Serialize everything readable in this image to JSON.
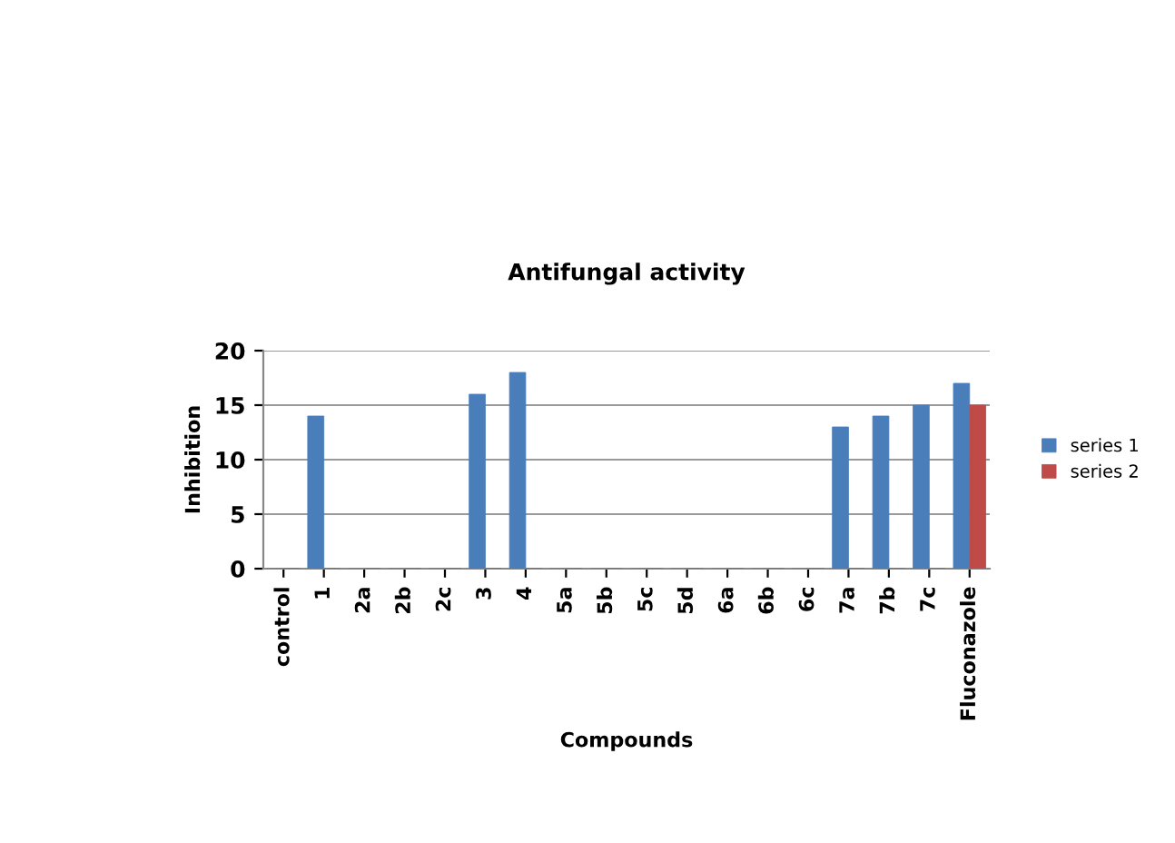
{
  "chart_data": {
    "type": "bar",
    "title": "Antifungal activity",
    "xlabel": "Compounds",
    "ylabel": "Inhibition",
    "categories": [
      "control",
      "1",
      "2a",
      "2b",
      "2c",
      "3",
      "4",
      "5a",
      "5b",
      "5c",
      "5d",
      "6a",
      "6b",
      "6c",
      "7a",
      "7b",
      "7c",
      "Fluconazole"
    ],
    "series": [
      {
        "name": "series 1",
        "color": "#4a7ebb",
        "values": [
          0,
          14,
          0,
          0,
          0,
          16,
          18,
          0,
          0,
          0,
          0,
          0,
          0,
          0,
          13,
          14,
          15,
          17
        ]
      },
      {
        "name": "series 2",
        "color": "#be4b48",
        "values": [
          0,
          0,
          0,
          0,
          0,
          0,
          0,
          0,
          0,
          0,
          0,
          0,
          0,
          0,
          0,
          0,
          0,
          15
        ]
      }
    ],
    "ylim": [
      0,
      20
    ],
    "yticks": [
      0,
      5,
      10,
      15,
      20
    ],
    "grid": "y",
    "legend": "right"
  }
}
